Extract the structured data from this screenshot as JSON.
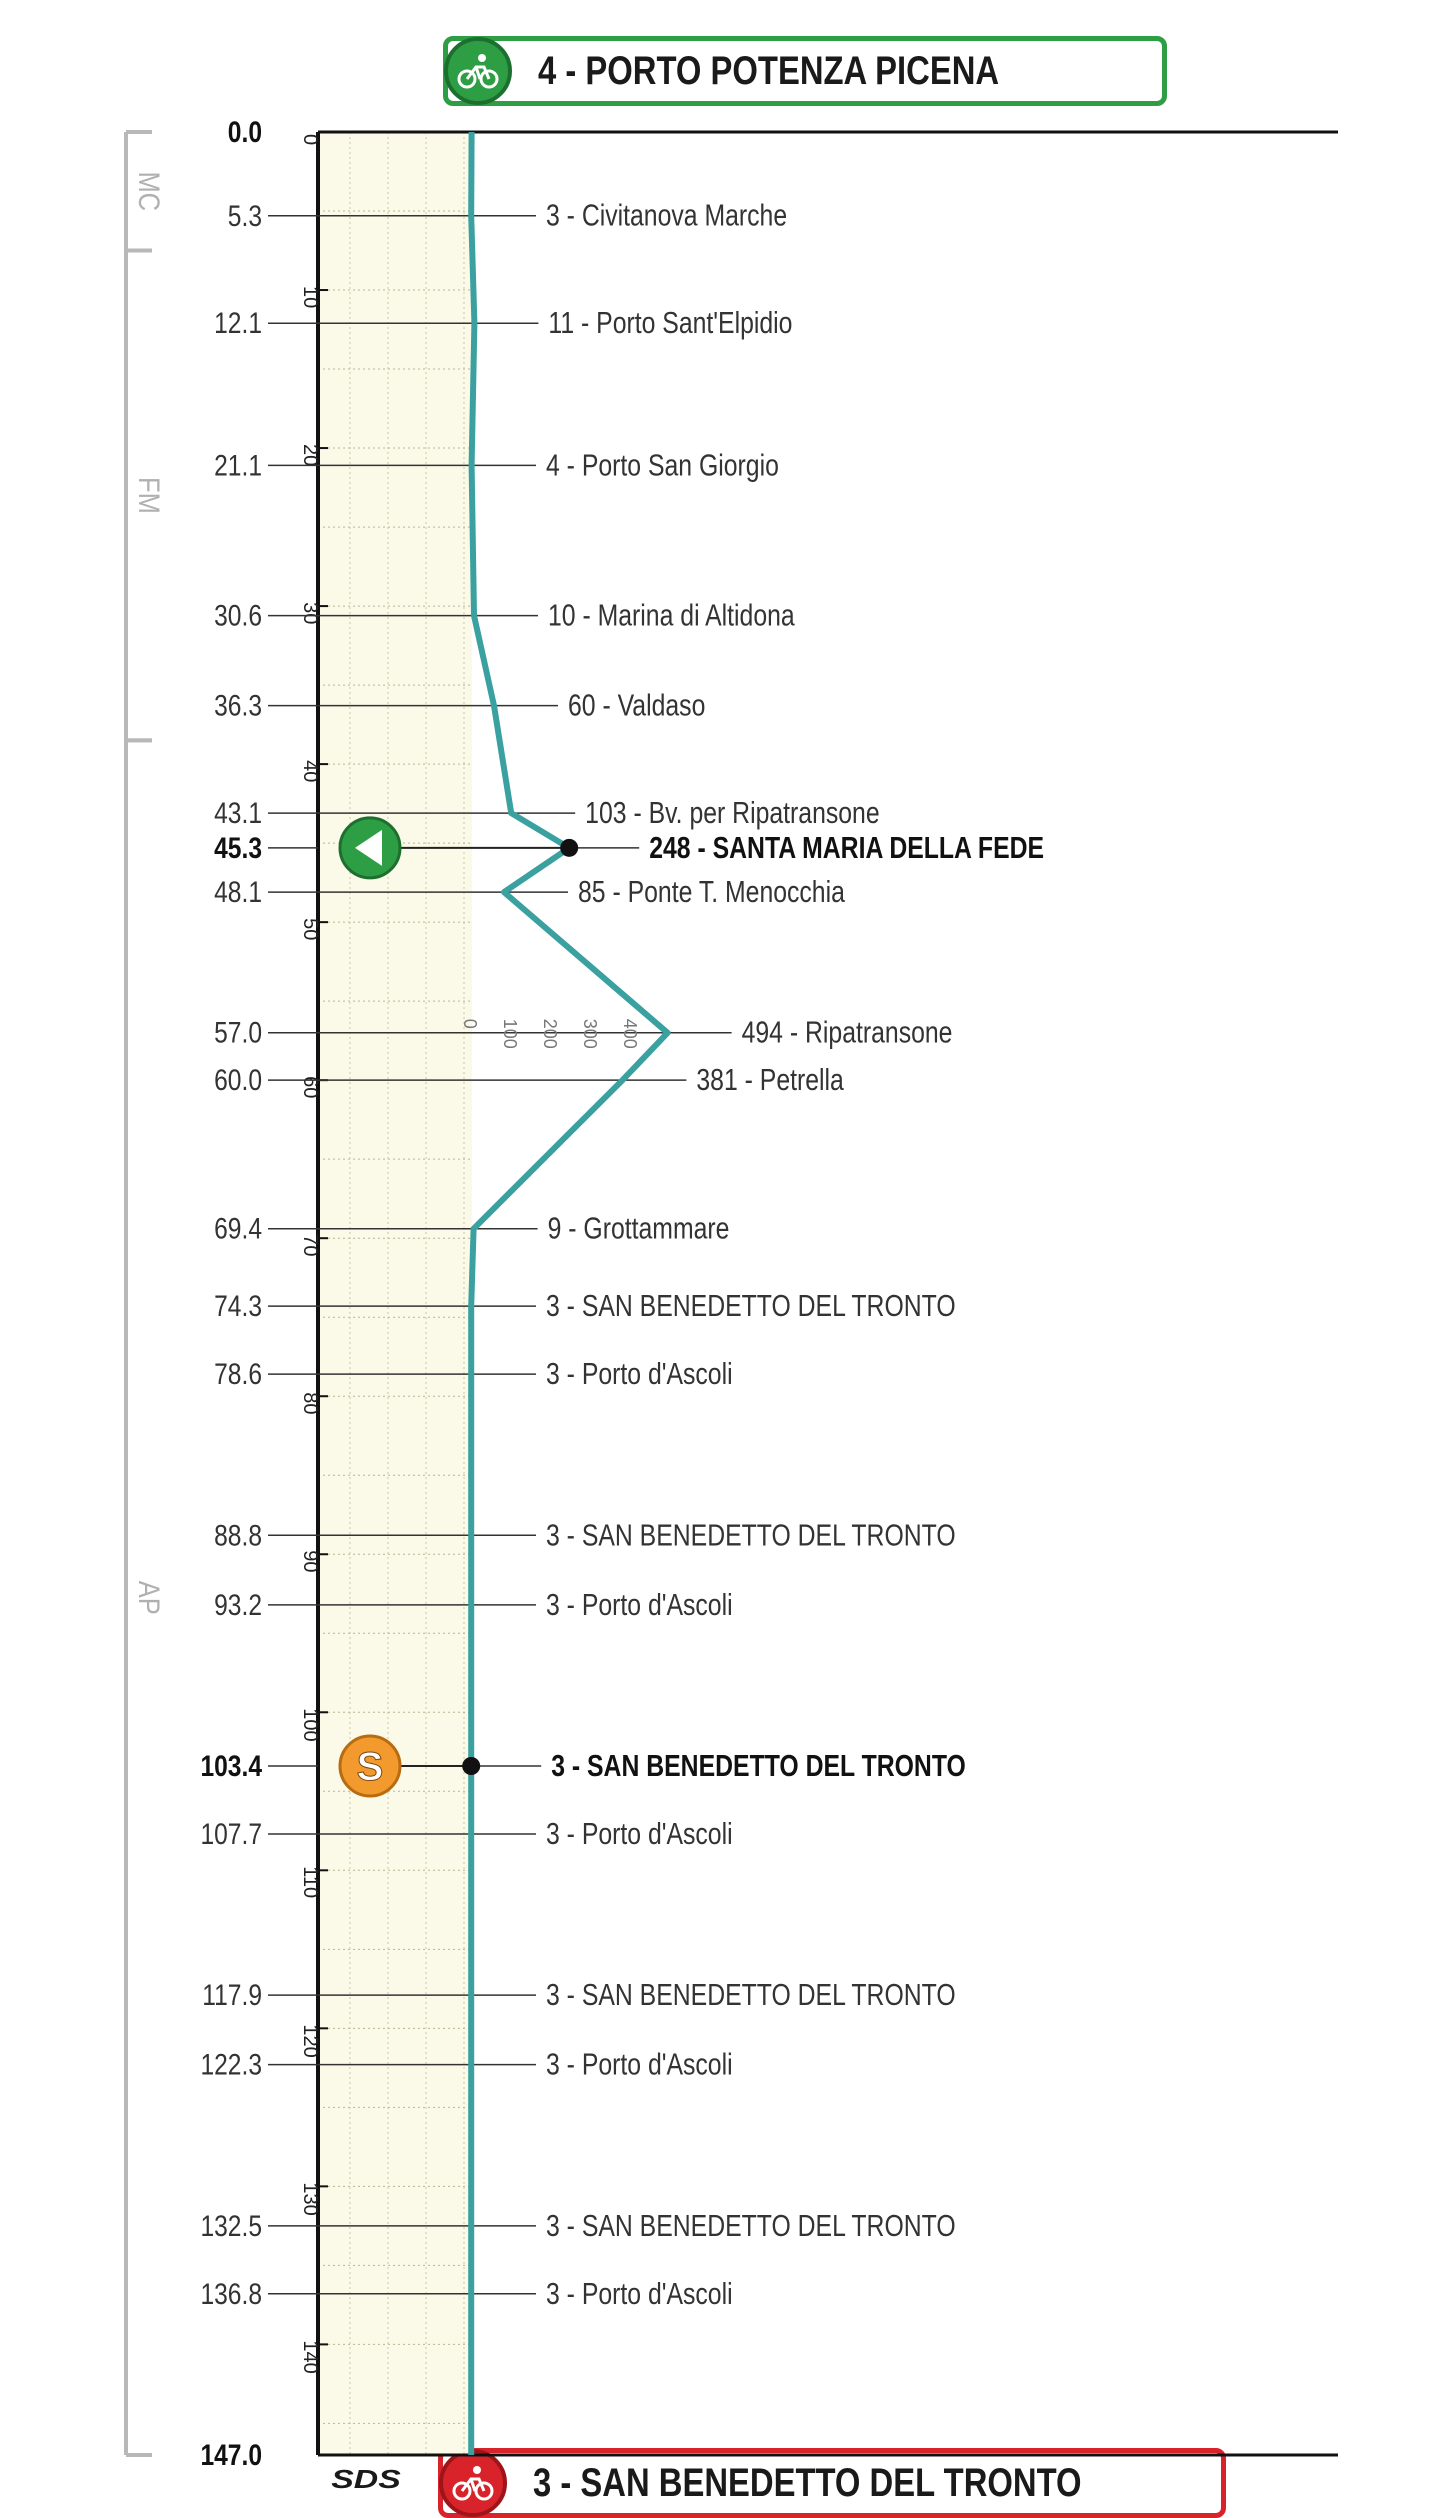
{
  "start_banner": "4 - PORTO POTENZA PICENA",
  "finish_banner": "3 - SAN BENEDETTO DEL TRONTO",
  "footer_logo": "SDS",
  "colors": {
    "profile_line": "#3aa0a0",
    "plot_fill": "#fbf9e8",
    "start_green": "#2e9e45",
    "finish_red": "#d8232a",
    "sprint_orange": "#f39a2e",
    "region_bracket": "#b8b8b8"
  },
  "icons": {
    "start": "cyclist-icon",
    "finish": "cyclist-icon",
    "gpm": "mountain-point-icon",
    "sprint": "sprint-s-icon"
  },
  "regions": [
    "MC",
    "FM",
    "AP"
  ],
  "chart_data": {
    "type": "line",
    "orientation": "vertical",
    "title": "",
    "xlabel": "",
    "ylabel": "",
    "distance_range_km": [
      0,
      147
    ],
    "altitude_ticks_m": [
      "0",
      "100",
      "200",
      "300",
      "400"
    ],
    "distance_ticks_km": [
      "0",
      "10",
      "20",
      "30",
      "40",
      "50",
      "60",
      "70",
      "80",
      "90",
      "100",
      "110",
      "120",
      "130",
      "140"
    ],
    "waypoints": [
      {
        "km": "0.0",
        "km_value": 0.0,
        "altitude": 4,
        "label": "",
        "bold_km": true
      },
      {
        "km": "5.3",
        "km_value": 5.3,
        "altitude": 3,
        "label": "3 - Civitanova Marche"
      },
      {
        "km": "12.1",
        "km_value": 12.1,
        "altitude": 11,
        "label": "11 - Porto Sant'Elpidio"
      },
      {
        "km": "21.1",
        "km_value": 21.1,
        "altitude": 4,
        "label": "4 - Porto San Giorgio"
      },
      {
        "km": "30.6",
        "km_value": 30.6,
        "altitude": 10,
        "label": "10 - Marina di Altidona"
      },
      {
        "km": "36.3",
        "km_value": 36.3,
        "altitude": 60,
        "label": "60 - Valdaso"
      },
      {
        "km": "43.1",
        "km_value": 43.1,
        "altitude": 103,
        "label": "103 - Bv. per Ripatransone"
      },
      {
        "km": "45.3",
        "km_value": 45.3,
        "altitude": 248,
        "label": "248 - SANTA MARIA DELLA FEDE",
        "bold": true,
        "marker": "gpm"
      },
      {
        "km": "48.1",
        "km_value": 48.1,
        "altitude": 85,
        "label": "85 - Ponte T. Menocchia"
      },
      {
        "km": "57.0",
        "km_value": 57.0,
        "altitude": 494,
        "label": "494 - Ripatransone"
      },
      {
        "km": "60.0",
        "km_value": 60.0,
        "altitude": 381,
        "label": "381 - Petrella"
      },
      {
        "km": "69.4",
        "km_value": 69.4,
        "altitude": 9,
        "label": "9 - Grottammare"
      },
      {
        "km": "74.3",
        "km_value": 74.3,
        "altitude": 3,
        "label": "3 - SAN BENEDETTO DEL TRONTO"
      },
      {
        "km": "78.6",
        "km_value": 78.6,
        "altitude": 3,
        "label": "3 - Porto d'Ascoli"
      },
      {
        "km": "88.8",
        "km_value": 88.8,
        "altitude": 3,
        "label": "3 - SAN BENEDETTO DEL TRONTO"
      },
      {
        "km": "93.2",
        "km_value": 93.2,
        "altitude": 3,
        "label": "3 - Porto d'Ascoli"
      },
      {
        "km": "103.4",
        "km_value": 103.4,
        "altitude": 3,
        "label": "3 - SAN BENEDETTO DEL TRONTO",
        "bold": true,
        "marker": "sprint"
      },
      {
        "km": "107.7",
        "km_value": 107.7,
        "altitude": 3,
        "label": "3 - Porto d'Ascoli"
      },
      {
        "km": "117.9",
        "km_value": 117.9,
        "altitude": 3,
        "label": "3 - SAN BENEDETTO DEL TRONTO"
      },
      {
        "km": "122.3",
        "km_value": 122.3,
        "altitude": 3,
        "label": "3 - Porto d'Ascoli"
      },
      {
        "km": "132.5",
        "km_value": 132.5,
        "altitude": 3,
        "label": "3 - SAN BENEDETTO DEL TRONTO"
      },
      {
        "km": "136.8",
        "km_value": 136.8,
        "altitude": 3,
        "label": "3 - Porto d'Ascoli"
      },
      {
        "km": "147.0",
        "km_value": 147.0,
        "altitude": 3,
        "label": "",
        "bold_km": true
      }
    ],
    "region_spans": [
      {
        "name": "MC",
        "from_km": 0,
        "to_km": 7.5
      },
      {
        "name": "FM",
        "from_km": 7.5,
        "to_km": 38.5
      },
      {
        "name": "AP",
        "from_km": 38.5,
        "to_km": 147
      }
    ]
  }
}
